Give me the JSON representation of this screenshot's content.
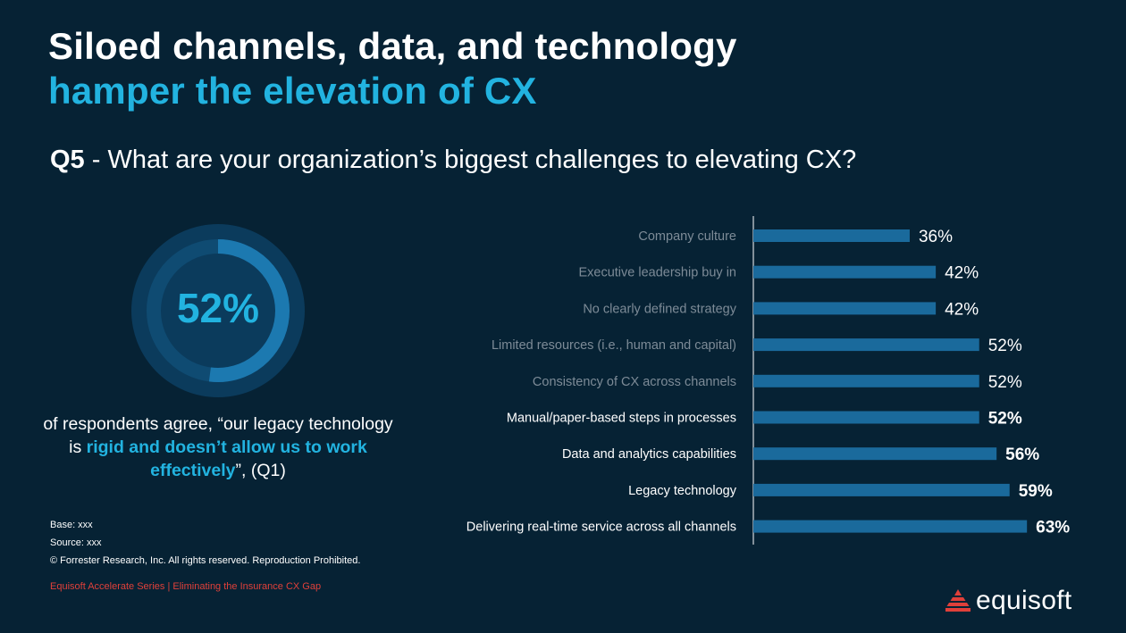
{
  "slide": {
    "title_line1": "Siloed channels, data, and technology",
    "title_line2": "hamper the elevation of CX",
    "question_number": "Q5",
    "question_text": " - What are your organization’s biggest challenges to elevating CX?"
  },
  "stat": {
    "value": "52%",
    "fraction": 0.52,
    "text_before": "of respondents agree, “our legacy technology is ",
    "text_highlight": "rigid and doesn’t allow us to work effectively",
    "text_after": "”, (Q1)"
  },
  "footnotes": {
    "base": "Base: xxx",
    "source": "Source: xxx",
    "copyright": "© Forrester Research, Inc. All rights reserved. Reproduction Prohibited."
  },
  "footer": {
    "series": "Equisoft Accelerate Series | Eliminating the Insurance CX Gap"
  },
  "logo": {
    "text": "equisoft"
  },
  "colors": {
    "background": "#062234",
    "accent": "#22b3e0",
    "bar": "#1a6a9c",
    "brand_red": "#e0403a",
    "muted_label": "#7d8b97"
  },
  "chart_data": {
    "type": "bar",
    "orientation": "horizontal",
    "categories": [
      "Company culture",
      "Executive leadership buy in",
      "No clearly defined strategy",
      "Limited resources (i.e., human and capital)",
      "Consistency of CX across channels",
      "Manual/paper-based steps in processes",
      "Data and analytics capabilities",
      "Legacy technology",
      "Delivering real-time service across all channels"
    ],
    "values": [
      36,
      42,
      42,
      52,
      52,
      52,
      56,
      59,
      63
    ],
    "value_labels": [
      "36%",
      "42%",
      "42%",
      "52%",
      "52%",
      "52%",
      "56%",
      "59%",
      "63%"
    ],
    "emphasized": [
      false,
      false,
      false,
      false,
      false,
      true,
      true,
      true,
      true
    ],
    "unit": "%"
  }
}
